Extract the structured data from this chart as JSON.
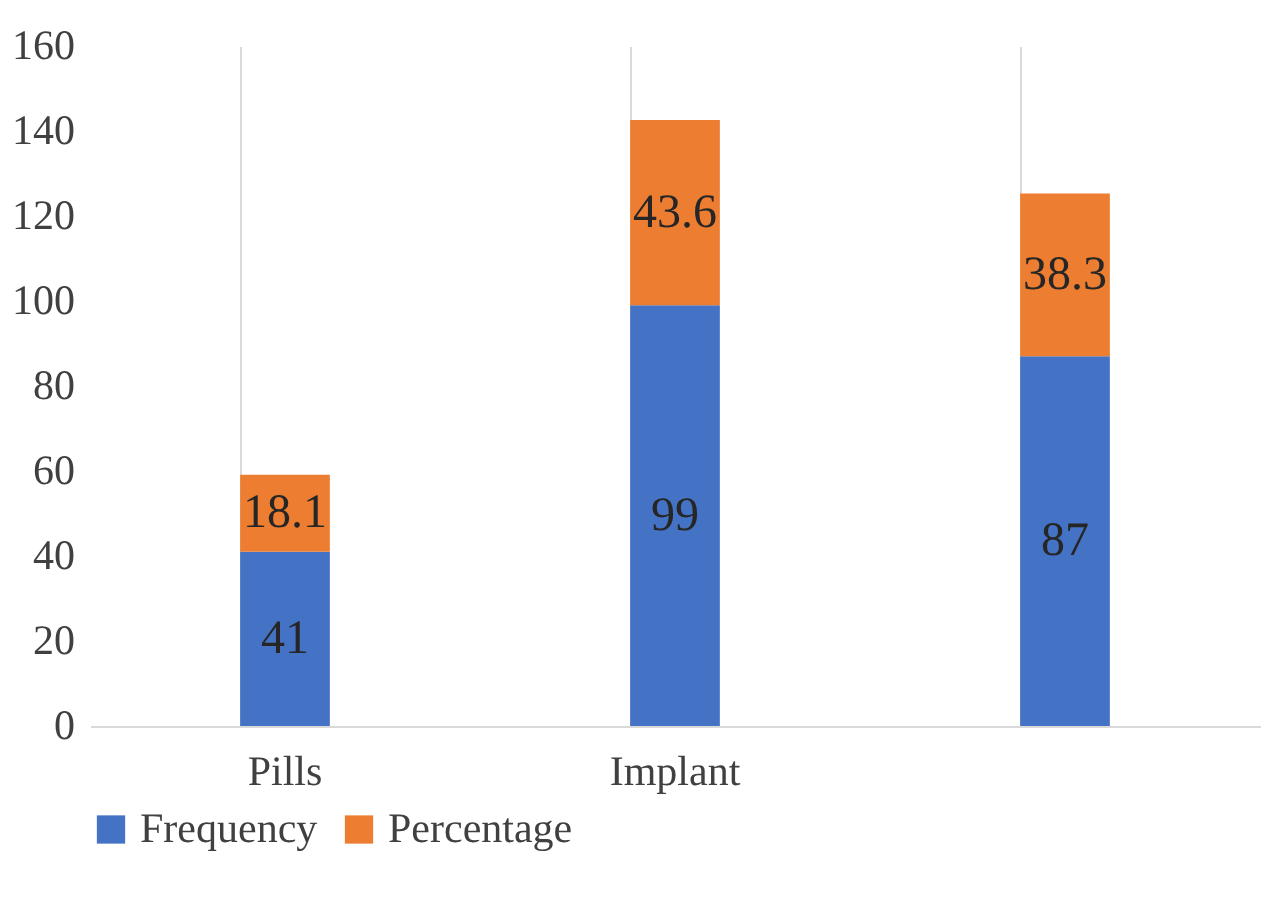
{
  "chart_data": {
    "type": "bar",
    "stacked": true,
    "categories": [
      "Pills",
      "Implant",
      null
    ],
    "series": [
      {
        "name": "Frequency",
        "color": "#4472c4",
        "values": [
          41,
          99,
          87
        ]
      },
      {
        "name": "Percentage",
        "color": "#ed7d31",
        "values": [
          18.1,
          43.6,
          38.3
        ]
      }
    ],
    "ylim": [
      0,
      160
    ],
    "yticks": [
      0,
      20,
      40,
      60,
      80,
      100,
      120,
      140,
      160
    ],
    "grid": "x",
    "legend": "bottom",
    "data_labels": true
  }
}
